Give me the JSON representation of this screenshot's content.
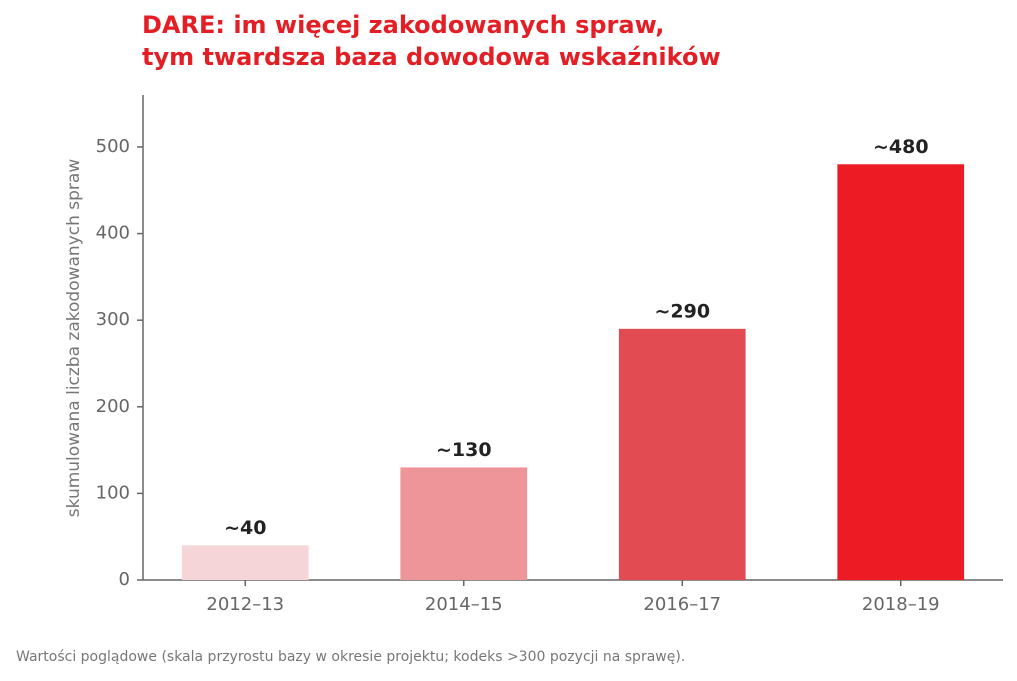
{
  "chart_data": {
    "type": "bar",
    "title": [
      "DARE: im więcej zakodowanych spraw,",
      "tym twardsza baza dowodowa wskaźników"
    ],
    "y_label": "skumulowana liczba zakodowanych spraw",
    "categories": [
      "2012–13",
      "2014–15",
      "2016–17",
      "2018–19"
    ],
    "values": [
      40,
      130,
      290,
      480
    ],
    "value_labels": [
      "~40",
      "~130",
      "~290",
      "~480"
    ],
    "colors": [
      "#f5d5d7",
      "#ee9599",
      "#e34b52",
      "#ed1c24"
    ],
    "ylim": [
      0,
      560
    ],
    "yticks": [
      0,
      100,
      200,
      300,
      400,
      500
    ],
    "grid": false,
    "note": "Wartości poglądowe (skala przyrostu bazy w okresie projektu; kodeks >300 pozycji na sprawę)."
  }
}
